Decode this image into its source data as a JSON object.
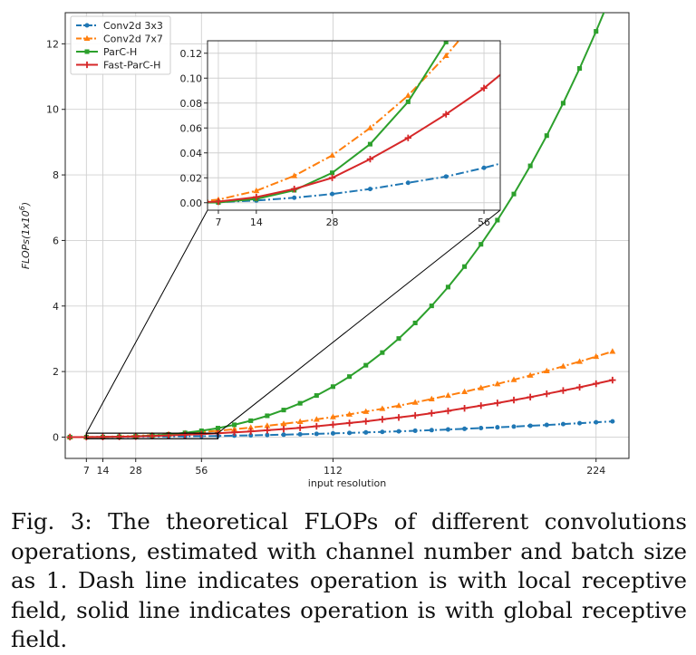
{
  "chart_data": {
    "type": "line",
    "xlabel": "input resolution",
    "ylabel": "FLOPs(1x10^6)",
    "ylabel_base": "FLOPs(1x10",
    "ylabel_exp": "6",
    "ylabel_close": ")",
    "xlim": [
      -2,
      238
    ],
    "ylim": [
      -0.65,
      12.95
    ],
    "x_ticks": [
      7,
      14,
      28,
      56,
      112,
      224
    ],
    "y_ticks": [
      0,
      2,
      4,
      6,
      8,
      10,
      12
    ],
    "grid": true,
    "legend_position": "top-left",
    "x": [
      0,
      7,
      14,
      21,
      28,
      35,
      42,
      49,
      56,
      63,
      70,
      77,
      84,
      91,
      98,
      105,
      112,
      119,
      126,
      133,
      140,
      147,
      154,
      161,
      168,
      175,
      182,
      189,
      196,
      203,
      210,
      217,
      224,
      231
    ],
    "series": [
      {
        "name": "Conv2d 3x3",
        "color": "#1f77b4",
        "style": "dashdot",
        "marker": "dot",
        "values": [
          0,
          0.0004,
          0.0018,
          0.004,
          0.007,
          0.011,
          0.016,
          0.021,
          0.028,
          0.036,
          0.044,
          0.053,
          0.064,
          0.074,
          0.086,
          0.099,
          0.113,
          0.127,
          0.143,
          0.159,
          0.176,
          0.194,
          0.213,
          0.233,
          0.254,
          0.276,
          0.298,
          0.321,
          0.346,
          0.371,
          0.397,
          0.424,
          0.452,
          0.48
        ]
      },
      {
        "name": "Conv2d 7x7",
        "color": "#ff7f0e",
        "style": "dashdot",
        "marker": "triangle",
        "values": [
          0,
          0.0024,
          0.0096,
          0.0216,
          0.038,
          0.06,
          0.086,
          0.118,
          0.154,
          0.194,
          0.24,
          0.29,
          0.346,
          0.406,
          0.47,
          0.54,
          0.614,
          0.694,
          0.778,
          0.866,
          0.96,
          1.058,
          1.162,
          1.27,
          1.382,
          1.5,
          1.622,
          1.75,
          1.882,
          2.018,
          2.16,
          2.306,
          2.458,
          2.614
        ]
      },
      {
        "name": "ParC-H",
        "color": "#2ca02c",
        "style": "solid",
        "marker": "square",
        "values": [
          0,
          0.0002,
          0.003,
          0.01,
          0.024,
          0.047,
          0.081,
          0.129,
          0.192,
          0.274,
          0.376,
          0.5,
          0.65,
          0.826,
          1.032,
          1.269,
          1.54,
          1.847,
          2.193,
          2.579,
          3.008,
          3.483,
          4.005,
          4.578,
          5.203,
          5.883,
          6.62,
          7.417,
          8.276,
          9.199,
          10.189,
          11.249,
          12.38,
          13.585
        ]
      },
      {
        "name": "Fast-ParC-H",
        "color": "#d62728",
        "style": "solid",
        "marker": "plus",
        "values": [
          0,
          0.0009,
          0.0045,
          0.011,
          0.02,
          0.035,
          0.052,
          0.071,
          0.092,
          0.117,
          0.145,
          0.175,
          0.209,
          0.246,
          0.285,
          0.33,
          0.38,
          0.43,
          0.48,
          0.54,
          0.6,
          0.66,
          0.73,
          0.8,
          0.88,
          0.96,
          1.04,
          1.13,
          1.22,
          1.32,
          1.42,
          1.52,
          1.63,
          1.74
        ]
      }
    ],
    "inset": {
      "xlim": [
        5,
        59
      ],
      "ylim": [
        -0.006,
        0.13
      ],
      "x_ticks": [
        7,
        14,
        28,
        56
      ],
      "y_ticks": [
        0.0,
        0.02,
        0.04,
        0.06,
        0.08,
        0.1,
        0.12
      ],
      "y_tick_labels": [
        "0.00",
        "0.02",
        "0.04",
        "0.06",
        "0.08",
        "0.10",
        "0.12"
      ],
      "zoom_box": {
        "x": [
          7,
          63
        ],
        "y": [
          -0.05,
          0.12
        ]
      }
    }
  },
  "caption": {
    "text": "Fig. 3: The theoretical FLOPs of different convolutions operations, estimated with channel number and batch size as 1. Dash line indicates operation is with local receptive field, solid line indicates operation is with global receptive field."
  }
}
